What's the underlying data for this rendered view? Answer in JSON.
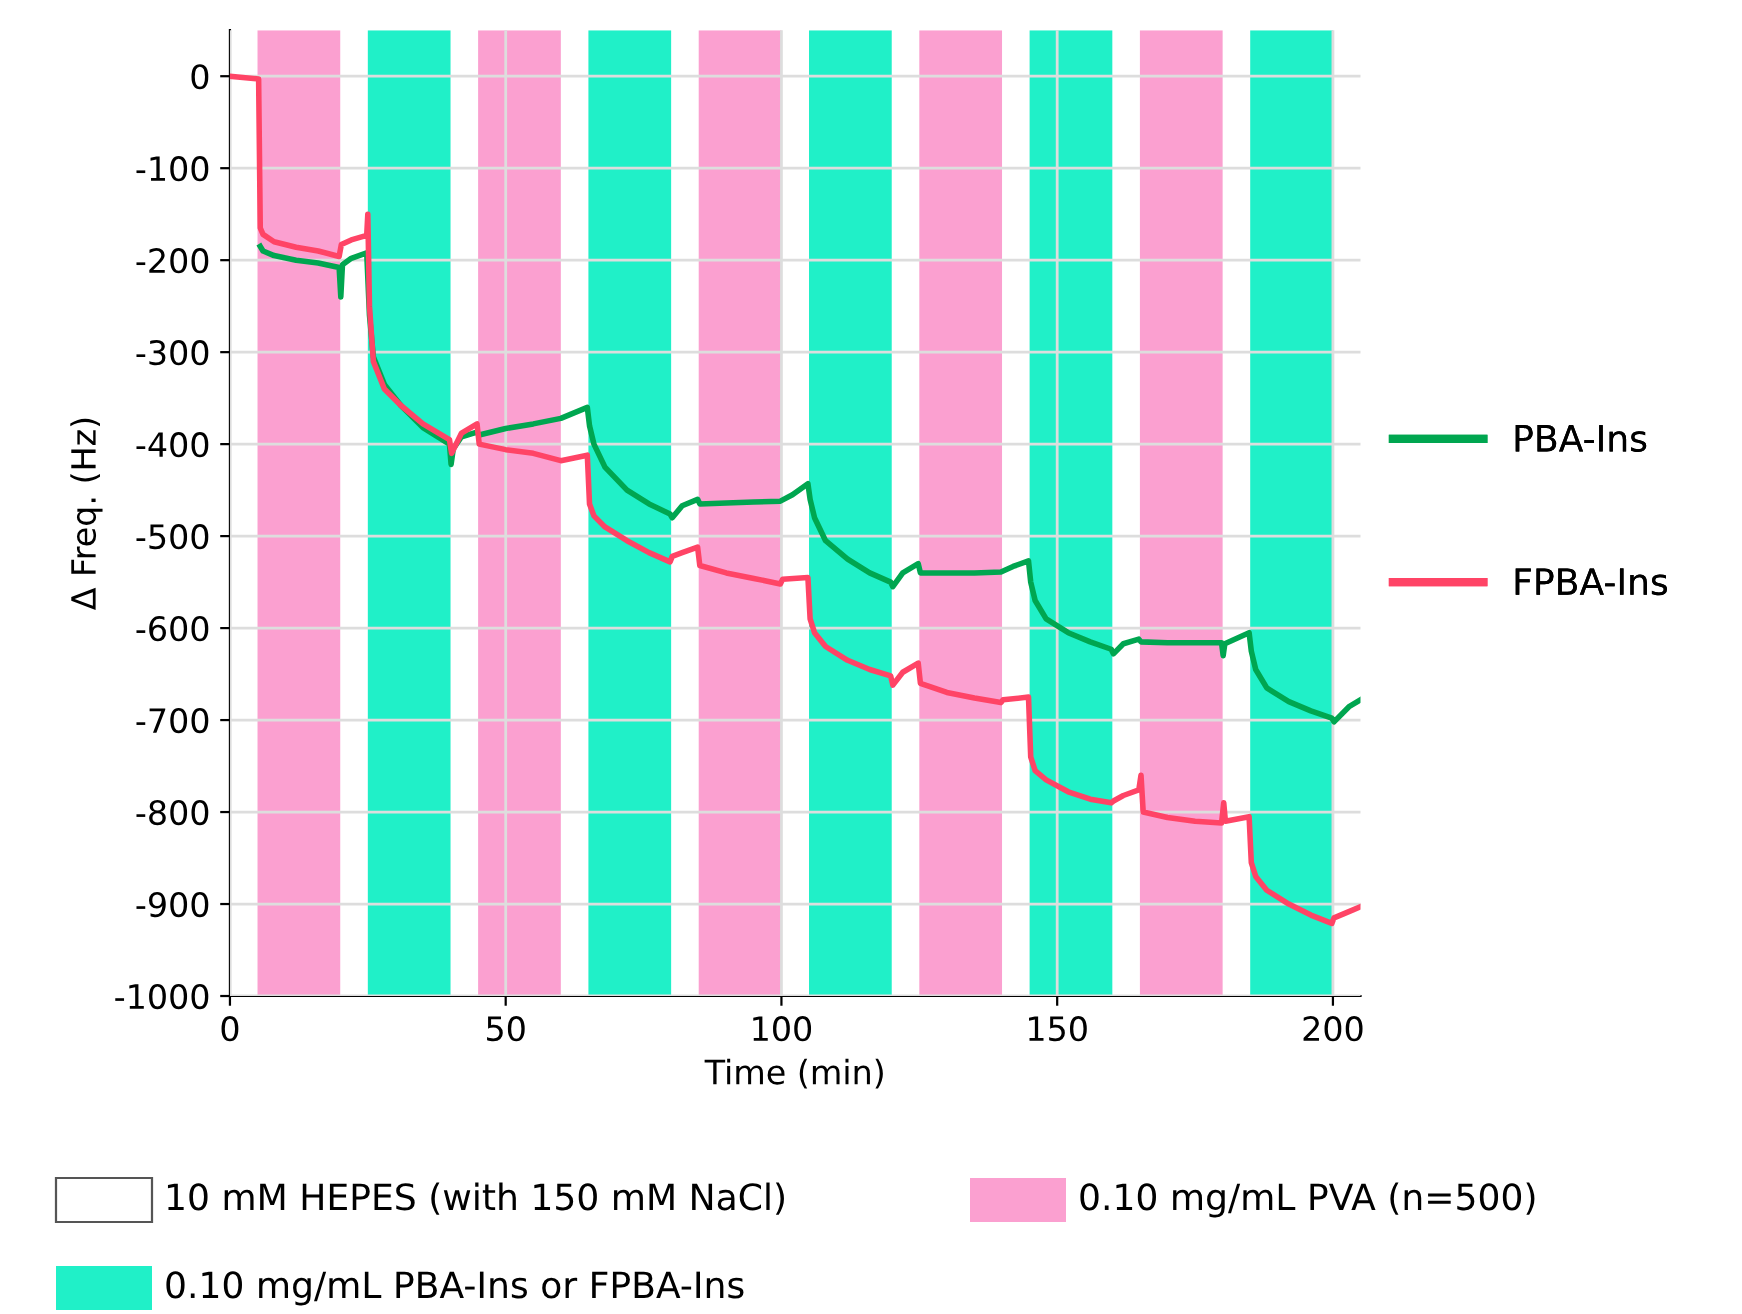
{
  "chart_data": {
    "type": "line",
    "xlabel": "Time (min)",
    "ylabel": "Δ Freq. (Hz)",
    "xlim": [
      0,
      205
    ],
    "xticks": [
      0,
      50,
      100,
      150,
      200
    ],
    "ylim": [
      -1000,
      50
    ],
    "yticks": [
      -1000,
      -900,
      -800,
      -700,
      -600,
      -500,
      -400,
      -300,
      -200,
      -100,
      0
    ],
    "grid": true,
    "legend": "right",
    "marker": "none",
    "line_style": "solid",
    "annotations": [
      "10 mM HEPES (with 150 mM NaCl)"
    ],
    "series": [
      {
        "name": "PBA-Ins",
        "color": "#00a650",
        "x": [
          5.5,
          6,
          8,
          12,
          16,
          19.8,
          20.1,
          20.4,
          22,
          24.8,
          25.3,
          26,
          28,
          31,
          35,
          39.8,
          40.1,
          40.5,
          42,
          44.8,
          45.2,
          50,
          55,
          60,
          64.8,
          65.2,
          66,
          68,
          72,
          76,
          79.8,
          80.2,
          82,
          84.8,
          85.2,
          90,
          95,
          99.8,
          102,
          104.8,
          105.2,
          106,
          108,
          112,
          116,
          119.8,
          120.2,
          122,
          124.8,
          125.2,
          130,
          135,
          139.8,
          142,
          144.8,
          145.2,
          146,
          148,
          152,
          156,
          159.8,
          160.2,
          162,
          164.8,
          165.2,
          170,
          175,
          179.8,
          180.1,
          180.4,
          184.8,
          185.2,
          186,
          188,
          192,
          196,
          199.8,
          200.2,
          203,
          205
        ],
        "values": [
          -185,
          -190,
          -195,
          -200,
          -203,
          -208,
          -240,
          -205,
          -198,
          -192,
          -260,
          -305,
          -335,
          -358,
          -382,
          -400,
          -422,
          -405,
          -392,
          -387,
          -390,
          -383,
          -378,
          -372,
          -360,
          -380,
          -400,
          -425,
          -450,
          -465,
          -476,
          -480,
          -467,
          -460,
          -465,
          -464,
          -463,
          -462,
          -455,
          -443,
          -460,
          -480,
          -505,
          -525,
          -540,
          -550,
          -555,
          -540,
          -530,
          -540,
          -540,
          -540,
          -539,
          -533,
          -527,
          -550,
          -570,
          -590,
          -605,
          -615,
          -623,
          -628,
          -617,
          -612,
          -615,
          -616,
          -616,
          -616,
          -630,
          -617,
          -605,
          -625,
          -645,
          -665,
          -680,
          -690,
          -698,
          -702,
          -685,
          -678
        ]
      },
      {
        "name": "FPBA-Ins",
        "color": "#ff4466",
        "x": [
          0,
          5.2,
          5.5,
          6,
          8,
          12,
          16,
          19.8,
          20.2,
          22,
          24.8,
          25,
          25.3,
          26,
          28,
          31,
          35,
          39.8,
          40.2,
          42,
          44.8,
          45.2,
          50,
          55,
          60,
          64.8,
          65.2,
          66,
          68,
          72,
          76,
          79.8,
          80.2,
          82,
          84.8,
          85.2,
          90,
          95,
          99.8,
          100.2,
          104.8,
          105.2,
          106,
          108,
          112,
          116,
          119.8,
          120.2,
          122,
          124.8,
          125.2,
          130,
          135,
          139.8,
          140.2,
          144.8,
          145.2,
          146,
          148,
          152,
          156,
          159.8,
          160.2,
          162,
          164.8,
          165.2,
          165.6,
          170,
          175,
          179.8,
          180.2,
          180.5,
          184.8,
          185.2,
          186,
          188,
          192,
          196,
          199.8,
          200.2,
          203,
          205
        ],
        "values": [
          0,
          -3,
          -165,
          -172,
          -180,
          -186,
          -190,
          -196,
          -183,
          -178,
          -173,
          -150,
          -250,
          -310,
          -340,
          -358,
          -378,
          -395,
          -410,
          -388,
          -378,
          -400,
          -406,
          -410,
          -418,
          -412,
          -465,
          -478,
          -490,
          -505,
          -518,
          -528,
          -522,
          -518,
          -512,
          -532,
          -540,
          -546,
          -552,
          -547,
          -545,
          -590,
          -605,
          -620,
          -635,
          -645,
          -652,
          -662,
          -648,
          -638,
          -660,
          -670,
          -676,
          -681,
          -678,
          -675,
          -740,
          -755,
          -765,
          -778,
          -786,
          -790,
          -788,
          -782,
          -776,
          -760,
          -800,
          -806,
          -810,
          -812,
          -790,
          -810,
          -805,
          -855,
          -870,
          -885,
          -900,
          -912,
          -921,
          -915,
          -908,
          -903
        ]
      }
    ],
    "bands": [
      {
        "axis": "x",
        "from": 5,
        "to": 20,
        "label": "0.10 mg/mL PVA (n=500)",
        "color": "#fba0d0"
      },
      {
        "axis": "x",
        "from": 25,
        "to": 40,
        "label": "0.10 mg/mL PBA-Ins or FPBA-Ins",
        "color": "#20f0c8"
      },
      {
        "axis": "x",
        "from": 45,
        "to": 60,
        "color": "#fba0d0"
      },
      {
        "axis": "x",
        "from": 65,
        "to": 80,
        "color": "#20f0c8"
      },
      {
        "axis": "x",
        "from": 85,
        "to": 100,
        "color": "#fba0d0"
      },
      {
        "axis": "x",
        "from": 105,
        "to": 120,
        "color": "#20f0c8"
      },
      {
        "axis": "x",
        "from": 125,
        "to": 140,
        "color": "#fba0d0"
      },
      {
        "axis": "x",
        "from": 145,
        "to": 160,
        "color": "#20f0c8"
      },
      {
        "axis": "x",
        "from": 165,
        "to": 180,
        "color": "#fba0d0"
      },
      {
        "axis": "x",
        "from": 185,
        "to": 200,
        "color": "#20f0c8"
      }
    ]
  }
}
